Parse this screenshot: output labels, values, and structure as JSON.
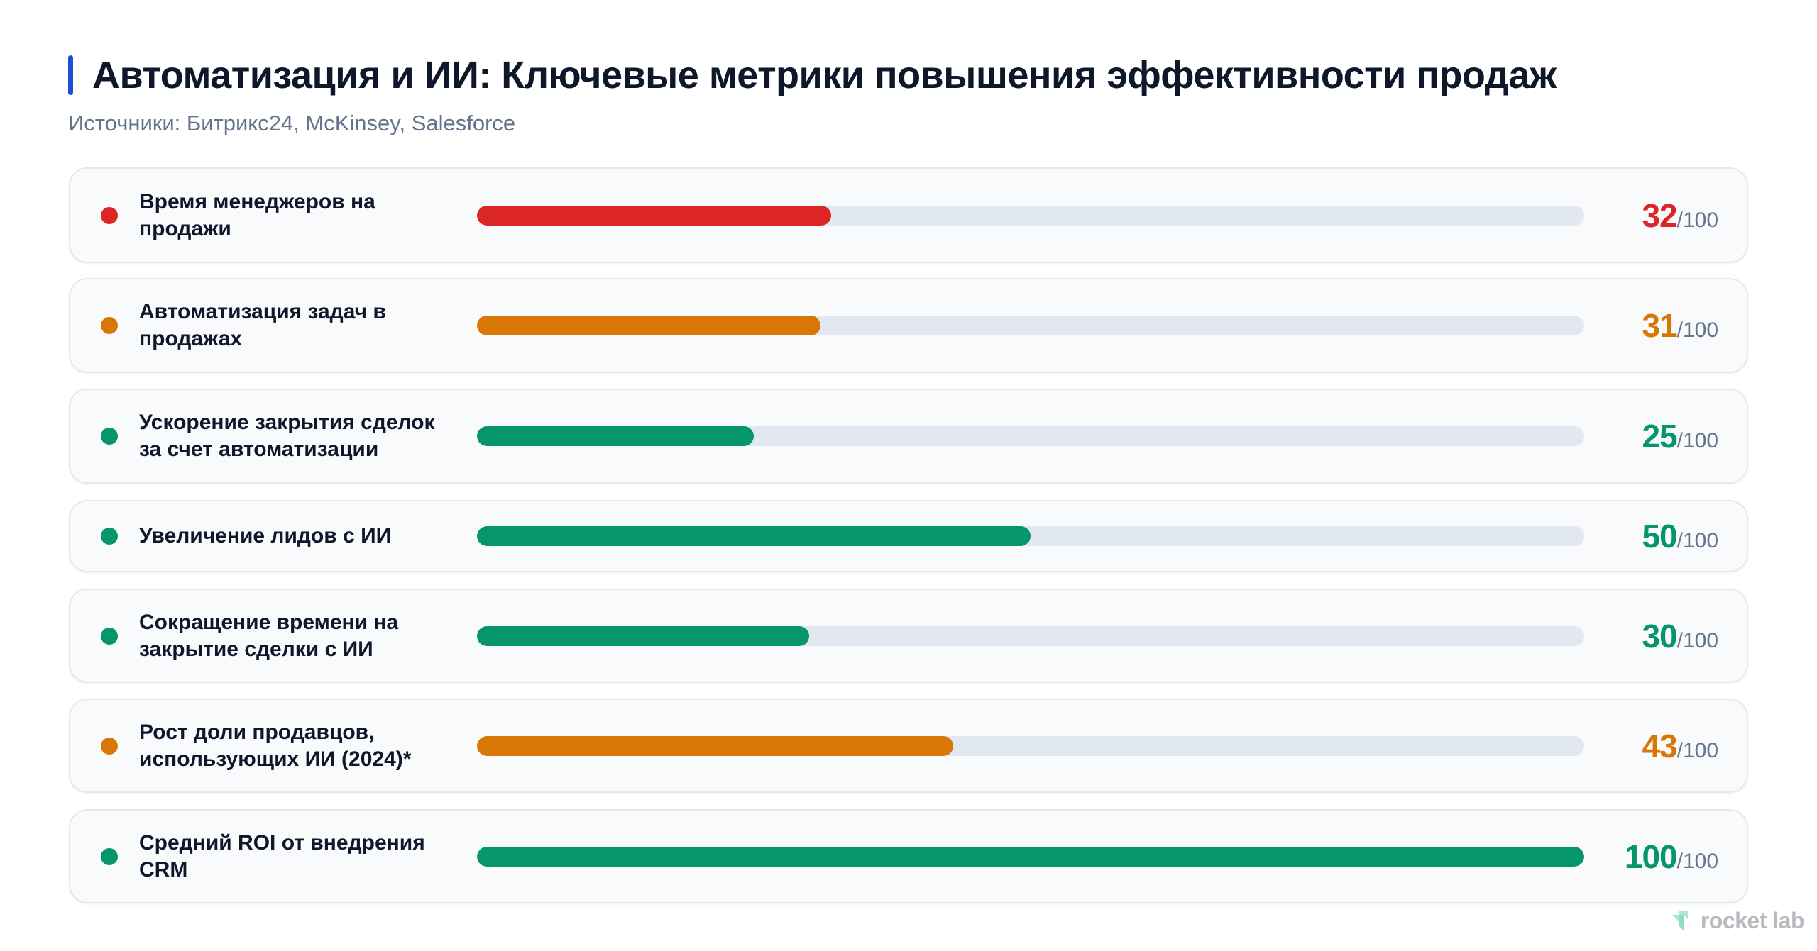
{
  "header": {
    "title": "Автоматизация и ИИ: Ключевые метрики повышения эффективности продаж",
    "subtitle": "Источники: Битрикс24, McKinsey, Salesforce",
    "accent_color": "#1d4ed8"
  },
  "scale_suffix": "/100",
  "colors": {
    "red": "#dc2626",
    "orange": "#d97706",
    "green": "#059669",
    "track": "#e2e8f0"
  },
  "rows": [
    {
      "label": "Время менеджеров на продажи",
      "value": "32",
      "color": "#dc2626"
    },
    {
      "label": "Автоматизация задач в продажах",
      "value": "31",
      "color": "#d97706"
    },
    {
      "label": "Ускорение закрытия сделок за счет автоматизации",
      "value": "25",
      "color": "#059669"
    },
    {
      "label": "Увеличение лидов с ИИ",
      "value": "50",
      "color": "#059669"
    },
    {
      "label": "Сокращение времени на закрытие сделки с ИИ",
      "value": "30",
      "color": "#059669"
    },
    {
      "label": "Рост доли продавцов, использующих ИИ (2024)*",
      "value": "43",
      "color": "#d97706"
    },
    {
      "label": "Средний ROI от внедрения CRM",
      "value": "100",
      "color": "#059669"
    }
  ],
  "logo": {
    "text": "rocket lab",
    "icon": "rocket-lab-logo-icon"
  },
  "chart_data": {
    "type": "bar",
    "orientation": "horizontal",
    "title": "Автоматизация и ИИ: Ключевые метрики повышения эффективности продаж",
    "subtitle": "Источники: Битрикс24, McKinsey, Salesforce",
    "categories": [
      "Время менеджеров на продажи",
      "Автоматизация задач в продажах",
      "Ускорение закрытия сделок за счет автоматизации",
      "Увеличение лидов с ИИ",
      "Сокращение времени на закрытие сделки с ИИ",
      "Рост доли продавцов, использующих ИИ (2024)*",
      "Средний ROI от внедрения CRM"
    ],
    "values": [
      32,
      31,
      25,
      50,
      30,
      43,
      100
    ],
    "colors": [
      "#dc2626",
      "#d97706",
      "#059669",
      "#059669",
      "#059669",
      "#d97706",
      "#059669"
    ],
    "xlim": [
      0,
      100
    ],
    "value_format": "{v}/100",
    "grid": false,
    "legend": null
  }
}
